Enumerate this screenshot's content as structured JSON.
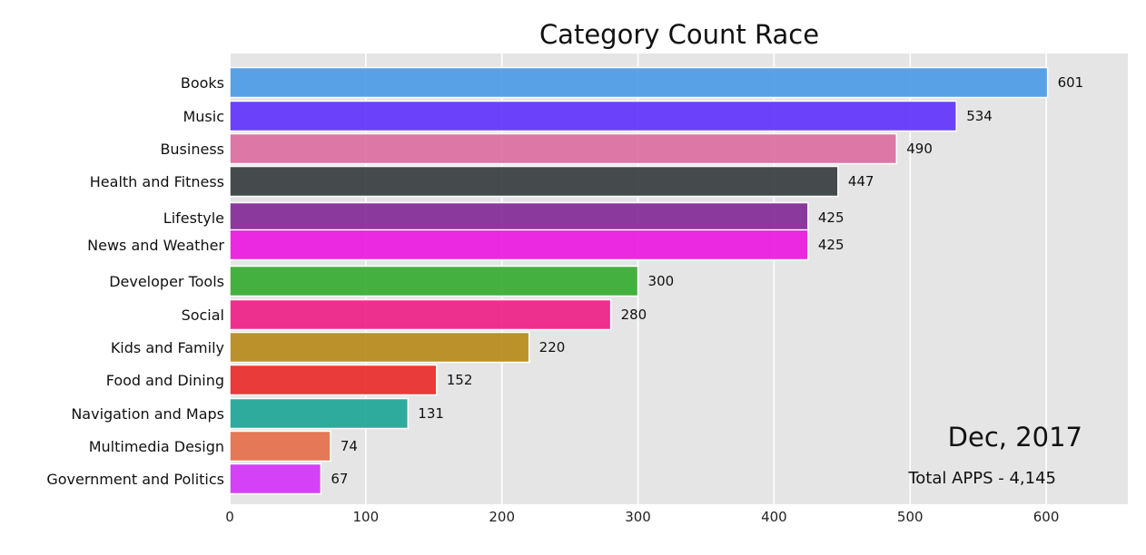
{
  "chart_data": {
    "type": "bar",
    "orientation": "horizontal",
    "title": "Category Count Race",
    "xlim": [
      0,
      660
    ],
    "x_ticks": [
      0,
      100,
      200,
      300,
      400,
      500,
      600
    ],
    "grid": true,
    "date_label": "Dec, 2017",
    "total_label": "Total APPS - 4,145",
    "bars": [
      {
        "label": "Books",
        "value": 601,
        "color": "#4C9BE6"
      },
      {
        "label": "Music",
        "value": 534,
        "color": "#6133FB"
      },
      {
        "label": "Business",
        "value": 490,
        "color": "#DC6EA0"
      },
      {
        "label": "Health and Fitness",
        "value": 447,
        "color": "#373D3F"
      },
      {
        "label": "Lifestyle",
        "value": 425,
        "color": "#832A97"
      },
      {
        "label": "News and Weather",
        "value": 425,
        "color": "#EC19E0"
      },
      {
        "label": "Developer Tools",
        "value": 300,
        "color": "#36AB31"
      },
      {
        "label": "Social",
        "value": 280,
        "color": "#EE2086"
      },
      {
        "label": "Kids and Family",
        "value": 220,
        "color": "#B78A1B"
      },
      {
        "label": "Food and Dining",
        "value": 152,
        "color": "#E92C2A"
      },
      {
        "label": "Navigation and Maps",
        "value": 131,
        "color": "#1FA697"
      },
      {
        "label": "Multimedia Design",
        "value": 74,
        "color": "#E56F4A"
      },
      {
        "label": "Government and Politics",
        "value": 67,
        "color": "#D233F7"
      }
    ]
  }
}
